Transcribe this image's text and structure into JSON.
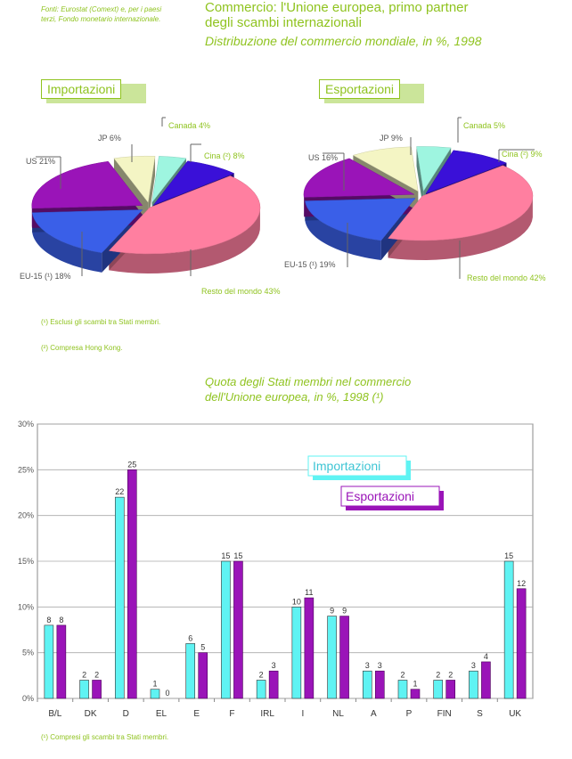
{
  "header": {
    "source": "Fonti: Eurostat (Comext) e, per i paesi terzi, Fondo monetario internazionale.",
    "title_line1": "Commercio: l'Unione europea, primo partner",
    "title_line2": "degli scambi internazionali",
    "subtitle": "Distribuzione del commercio mondiale, in %, 1998"
  },
  "pies": [
    {
      "label": "Importazioni",
      "slices": [
        {
          "name": "Resto del mondo",
          "label": "Resto del mondo 43%",
          "value": 43,
          "color": "#ff7fa0"
        },
        {
          "name": "EU-15",
          "label": "EU-15 (¹) 18%",
          "value": 18,
          "color": "#3a5fe8"
        },
        {
          "name": "US",
          "label": "US 21%",
          "value": 21,
          "color": "#9a14b8"
        },
        {
          "name": "JP",
          "label": "JP 6%",
          "value": 6,
          "color": "#f4f5c4"
        },
        {
          "name": "Canada",
          "label": "Canada 4%",
          "value": 4,
          "color": "#9ef5e0"
        },
        {
          "name": "Cina",
          "label": "Cina (²) 8%",
          "value": 8,
          "color": "#3a10d8"
        }
      ]
    },
    {
      "label": "Esportazioni",
      "slices": [
        {
          "name": "Resto del mondo",
          "label": "Resto del mondo 42%",
          "value": 42,
          "color": "#ff7fa0"
        },
        {
          "name": "EU-15",
          "label": "EU-15 (¹) 19%",
          "value": 19,
          "color": "#3a5fe8"
        },
        {
          "name": "US",
          "label": "US 16%",
          "value": 16,
          "color": "#9a14b8"
        },
        {
          "name": "JP",
          "label": "JP 9%",
          "value": 9,
          "color": "#f4f5c4"
        },
        {
          "name": "Canada",
          "label": "Canada 5%",
          "value": 5,
          "color": "#9ef5e0"
        },
        {
          "name": "Cina",
          "label": "Cina (²) 9%",
          "value": 9,
          "color": "#3a10d8"
        }
      ]
    }
  ],
  "pie_notes": {
    "note1": "(¹) Esclusi gli scambi tra Stati membri.",
    "note2": "(²) Compresa Hong Kong."
  },
  "bar_section": {
    "subtitle_line1": "Quota degli Stati membri nel commercio",
    "subtitle_line2": "dell'Unione europea, in %, 1998 (¹)",
    "footnote": "(¹) Compresi gli scambi tra Stati membri."
  },
  "chart_data": [
    {
      "type": "pie",
      "title": "Importazioni",
      "labels": [
        "Resto del mondo",
        "EU-15 (¹)",
        "US",
        "JP",
        "Canada",
        "Cina (²)"
      ],
      "values": [
        43,
        18,
        21,
        6,
        4,
        8
      ]
    },
    {
      "type": "pie",
      "title": "Esportazioni",
      "labels": [
        "Resto del mondo",
        "EU-15 (¹)",
        "US",
        "JP",
        "Canada",
        "Cina (²)"
      ],
      "values": [
        42,
        19,
        16,
        9,
        5,
        9
      ]
    },
    {
      "type": "bar",
      "title": "Quota degli Stati membri nel commercio dell'Unione europea, in %, 1998 (¹)",
      "categories": [
        "B/L",
        "DK",
        "D",
        "EL",
        "E",
        "F",
        "IRL",
        "I",
        "NL",
        "A",
        "P",
        "FIN",
        "S",
        "UK"
      ],
      "series": [
        {
          "name": "Importazioni",
          "color": "#5ff3f3",
          "values": [
            8,
            2,
            22,
            1,
            6,
            15,
            2,
            10,
            9,
            3,
            2,
            2,
            3,
            15
          ]
        },
        {
          "name": "Esportazioni",
          "color": "#9a14b8",
          "values": [
            8,
            2,
            25,
            0,
            5,
            15,
            3,
            11,
            9,
            3,
            1,
            2,
            4,
            12
          ]
        }
      ],
      "yticks": [
        "0%",
        "5%",
        "10%",
        "15%",
        "20%",
        "25%",
        "30%"
      ],
      "ylim": [
        0,
        30
      ],
      "grid": true,
      "legend": "top-right"
    }
  ]
}
